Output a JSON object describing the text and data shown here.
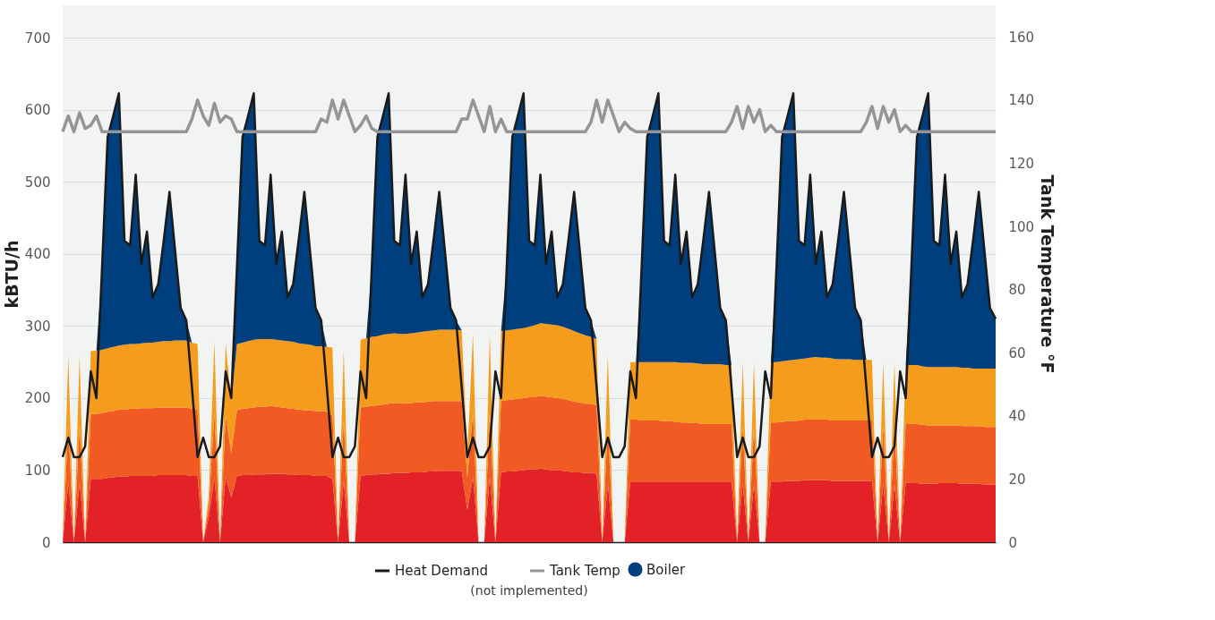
{
  "chart_data": {
    "type": "area",
    "stacked": true,
    "xlabel": null,
    "ylabel": "kBTU/h",
    "y2label": "Tank Temperature °F",
    "ylim": [
      0,
      745
    ],
    "yticks": [
      0,
      100,
      200,
      300,
      400,
      500,
      600,
      700
    ],
    "y2lim": [
      0,
      170
    ],
    "y2ticks": [
      0,
      20,
      40,
      60,
      80,
      100,
      120,
      140,
      160
    ],
    "grid": "y",
    "legend": "bottom",
    "tick_labels": "y",
    "annotations": [
      "(not implemented)"
    ],
    "categories": [
      null,
      null,
      null,
      null,
      null,
      null,
      null,
      null,
      null,
      null,
      null,
      null,
      null,
      null,
      null,
      null,
      null,
      null,
      null,
      null,
      null,
      null,
      null,
      null,
      null,
      null,
      null,
      null,
      null,
      null,
      null,
      null,
      null,
      null,
      null,
      null,
      null,
      null,
      null,
      null,
      null,
      null,
      null,
      null,
      null,
      null,
      null,
      null,
      null,
      null,
      null,
      null,
      null,
      null,
      null,
      null,
      null,
      null,
      null,
      null,
      null,
      null,
      null,
      null,
      null,
      null,
      null,
      null,
      null,
      null,
      null,
      null,
      null,
      null,
      null,
      null,
      null,
      null,
      null,
      null,
      null,
      null,
      null,
      null,
      null,
      null,
      null,
      null,
      null,
      null,
      null,
      null,
      null,
      null,
      null,
      null,
      null,
      null,
      null,
      null,
      null,
      null,
      null,
      null,
      null,
      null,
      null,
      null,
      null,
      null,
      null,
      null,
      null,
      null,
      null,
      null,
      null,
      null,
      null,
      null,
      null,
      null,
      null,
      null,
      null,
      null,
      null,
      null,
      null,
      null,
      null,
      null,
      null,
      null,
      null,
      null,
      null,
      null,
      null,
      null,
      null,
      null,
      null,
      null,
      null,
      null,
      null,
      null,
      null,
      null,
      null,
      null,
      null,
      null,
      null,
      null,
      null,
      null,
      null,
      null,
      null,
      null,
      null,
      null,
      null,
      null,
      null
    ],
    "series": [
      {
        "color": "#e32228",
        "values": [
          0,
          83,
          0,
          83,
          0,
          88,
          88,
          88,
          89,
          90,
          91,
          91,
          92,
          92,
          92,
          92,
          92,
          93,
          93,
          93,
          93,
          93,
          93,
          92,
          92,
          0,
          35,
          90,
          0,
          91,
          62,
          92,
          93,
          93,
          94,
          94,
          94,
          95,
          95,
          95,
          94,
          94,
          93,
          93,
          93,
          92,
          92,
          92,
          88,
          0,
          85,
          0,
          0,
          92,
          93,
          94,
          94,
          95,
          95,
          96,
          96,
          96,
          97,
          97,
          97,
          98,
          98,
          99,
          99,
          99,
          99,
          99,
          45,
          90,
          0,
          0,
          90,
          0,
          97,
          98,
          98,
          99,
          100,
          101,
          101,
          102,
          101,
          100,
          100,
          99,
          98,
          97,
          97,
          96,
          96,
          95,
          0,
          80,
          0,
          0,
          0,
          84,
          84,
          84,
          84,
          84,
          84,
          84,
          84,
          84,
          84,
          84,
          84,
          84,
          84,
          84,
          84,
          84,
          84,
          84,
          0,
          80,
          0,
          80,
          0,
          0,
          84,
          84,
          84,
          85,
          85,
          85,
          86,
          86,
          86,
          86,
          86,
          85,
          85,
          85,
          85,
          85,
          85,
          85,
          85,
          0,
          80,
          0,
          80,
          0,
          83,
          82,
          82,
          81,
          81,
          81,
          82,
          82,
          82,
          82,
          81,
          81,
          81,
          81,
          80,
          80,
          80
        ]
      },
      {
        "color": "#f15a22",
        "values": [
          0,
          79,
          0,
          79,
          0,
          90,
          90,
          91,
          92,
          92,
          93,
          93,
          93,
          93,
          94,
          94,
          94,
          94,
          94,
          94,
          94,
          94,
          94,
          93,
          92,
          0,
          15,
          90,
          0,
          85,
          62,
          91,
          92,
          93,
          93,
          94,
          94,
          94,
          93,
          92,
          92,
          91,
          91,
          90,
          90,
          90,
          90,
          89,
          88,
          0,
          85,
          0,
          0,
          95,
          95,
          95,
          96,
          96,
          97,
          97,
          97,
          96,
          96,
          97,
          97,
          97,
          98,
          97,
          97,
          97,
          97,
          97,
          45,
          90,
          0,
          0,
          90,
          0,
          99,
          99,
          100,
          100,
          100,
          100,
          100,
          101,
          101,
          101,
          100,
          100,
          99,
          98,
          97,
          96,
          96,
          95,
          0,
          80,
          0,
          0,
          0,
          86,
          86,
          85,
          85,
          85,
          85,
          84,
          84,
          83,
          82,
          82,
          81,
          81,
          80,
          80,
          80,
          80,
          80,
          80,
          0,
          80,
          0,
          80,
          0,
          0,
          82,
          82,
          83,
          83,
          83,
          84,
          84,
          84,
          85,
          84,
          84,
          84,
          84,
          84,
          84,
          84,
          84,
          84,
          84,
          0,
          80,
          0,
          80,
          0,
          82,
          82,
          82,
          82,
          81,
          81,
          80,
          80,
          80,
          80,
          80,
          80,
          80,
          80,
          80,
          80,
          80
        ]
      },
      {
        "color": "#f59c1c",
        "values": [
          0,
          96,
          0,
          96,
          0,
          87,
          88,
          88,
          88,
          89,
          89,
          90,
          90,
          90,
          90,
          91,
          91,
          91,
          92,
          92,
          93,
          93,
          93,
          92,
          91,
          0,
          15,
          99,
          0,
          100,
          70,
          92,
          92,
          93,
          94,
          94,
          94,
          93,
          93,
          93,
          93,
          93,
          92,
          92,
          91,
          90,
          90,
          90,
          94,
          0,
          96,
          0,
          0,
          94,
          95,
          96,
          96,
          97,
          97,
          97,
          96,
          97,
          97,
          97,
          98,
          98,
          98,
          99,
          99,
          99,
          99,
          98,
          30,
          110,
          0,
          0,
          109,
          0,
          97,
          97,
          97,
          97,
          97,
          98,
          100,
          101,
          101,
          101,
          101,
          100,
          99,
          98,
          96,
          95,
          93,
          92,
          0,
          100,
          0,
          0,
          0,
          80,
          80,
          81,
          81,
          81,
          81,
          82,
          82,
          83,
          83,
          83,
          84,
          83,
          83,
          83,
          83,
          83,
          82,
          82,
          0,
          90,
          0,
          90,
          0,
          0,
          84,
          84,
          84,
          84,
          85,
          85,
          85,
          86,
          86,
          86,
          86,
          86,
          85,
          85,
          85,
          84,
          84,
          84,
          84,
          0,
          90,
          0,
          90,
          0,
          81,
          82,
          82,
          81,
          81,
          81,
          81,
          81,
          81,
          81,
          81,
          81,
          80,
          80,
          81,
          81,
          81
        ]
      },
      {
        "name": "Boiler",
        "color": "#003f7d",
        "values": [
          0,
          0,
          0,
          0,
          0,
          0,
          0,
          113,
          293,
          321,
          350,
          144,
          137,
          235,
          110,
          154,
          63,
          80,
          141,
          207,
          125,
          45,
          28,
          0,
          0,
          0,
          0,
          0,
          0,
          0,
          0,
          105,
          285,
          313,
          342,
          136,
          130,
          228,
          105,
          151,
          61,
          80,
          144,
          211,
          131,
          53,
          36,
          0,
          0,
          0,
          0,
          0,
          0,
          0,
          0,
          95,
          276,
          304,
          334,
          128,
          123,
          221,
          96,
          140,
          48,
          65,
          126,
          191,
          110,
          30,
          13,
          0,
          0,
          0,
          0,
          0,
          0,
          0,
          0,
          86,
          267,
          296,
          326,
          119,
          111,
          206,
          83,
          129,
          39,
          59,
          124,
          193,
          115,
          38,
          23,
          0,
          0,
          0,
          0,
          0,
          0,
          0,
          0,
          130,
          312,
          342,
          373,
          168,
          162,
          260,
          137,
          182,
          91,
          110,
          173,
          239,
          158,
          78,
          62,
          0,
          0,
          0,
          0,
          0,
          0,
          0,
          0,
          130,
          311,
          340,
          370,
          164,
          157,
          254,
          129,
          175,
          84,
          103,
          166,
          232,
          151,
          72,
          55,
          0,
          0,
          0,
          0,
          0,
          0,
          0,
          0,
          134,
          316,
          348,
          380,
          175,
          169,
          267,
          143,
          188,
          98,
          116,
          179,
          245,
          164,
          84,
          69
        ]
      },
      {
        "name": "Heat Demand",
        "type": "line",
        "color": "#1a1a1a",
        "values": [
          118,
          145,
          118,
          118,
          133,
          237,
          200,
          380,
          562,
          592,
          623,
          418,
          412,
          510,
          386,
          431,
          340,
          358,
          420,
          486,
          405,
          325,
          308,
          215,
          118,
          145,
          118,
          118,
          133,
          237,
          200,
          380,
          562,
          592,
          623,
          418,
          412,
          510,
          386,
          431,
          340,
          358,
          420,
          486,
          405,
          325,
          308,
          215,
          118,
          145,
          118,
          118,
          133,
          237,
          200,
          380,
          562,
          592,
          623,
          418,
          412,
          510,
          386,
          431,
          340,
          358,
          420,
          486,
          405,
          325,
          308,
          215,
          118,
          145,
          118,
          118,
          133,
          237,
          200,
          380,
          562,
          592,
          623,
          418,
          412,
          510,
          386,
          431,
          340,
          358,
          420,
          486,
          405,
          325,
          308,
          215,
          118,
          145,
          118,
          118,
          133,
          237,
          200,
          380,
          562,
          592,
          623,
          418,
          412,
          510,
          386,
          431,
          340,
          358,
          420,
          486,
          405,
          325,
          308,
          215,
          118,
          145,
          118,
          118,
          133,
          237,
          200,
          380,
          562,
          592,
          623,
          418,
          412,
          510,
          386,
          431,
          340,
          358,
          420,
          486,
          405,
          325,
          308,
          215,
          118,
          145,
          118,
          118,
          133,
          237,
          200,
          380,
          562,
          592,
          623,
          418,
          412,
          510,
          386,
          431,
          340,
          358,
          420,
          486,
          405,
          325,
          310
        ]
      },
      {
        "name": "Tank Temp",
        "type": "line",
        "axis": "y2",
        "color": "#939598",
        "values": [
          130,
          135,
          130,
          136,
          131,
          132,
          135,
          130,
          130,
          130,
          130,
          130,
          130,
          130,
          130,
          130,
          130,
          130,
          130,
          130,
          130,
          130,
          130,
          134,
          140,
          135,
          132,
          139,
          133,
          135,
          134,
          130,
          130,
          130,
          130,
          130,
          130,
          130,
          130,
          130,
          130,
          130,
          130,
          130,
          130,
          130,
          134,
          133,
          140,
          134,
          140,
          135,
          130,
          132,
          135,
          131,
          130,
          130,
          130,
          130,
          130,
          130,
          130,
          130,
          130,
          130,
          130,
          130,
          130,
          130,
          130,
          134,
          134,
          140,
          135,
          130,
          138,
          130,
          134,
          130,
          130,
          130,
          130,
          130,
          130,
          130,
          130,
          130,
          130,
          130,
          130,
          130,
          130,
          130,
          133,
          140,
          133,
          140,
          135,
          130,
          133,
          131,
          130,
          130,
          130,
          130,
          130,
          130,
          130,
          130,
          130,
          130,
          130,
          130,
          130,
          130,
          130,
          130,
          130,
          133,
          138,
          131,
          138,
          133,
          137,
          130,
          132,
          130,
          130,
          130,
          130,
          130,
          130,
          130,
          130,
          130,
          130,
          130,
          130,
          130,
          130,
          130,
          130,
          133,
          138,
          131,
          138,
          133,
          137,
          130,
          132,
          130,
          130,
          130,
          130,
          130,
          130,
          130,
          130,
          130,
          130,
          130,
          130,
          130,
          130,
          130,
          130
        ]
      }
    ]
  }
}
